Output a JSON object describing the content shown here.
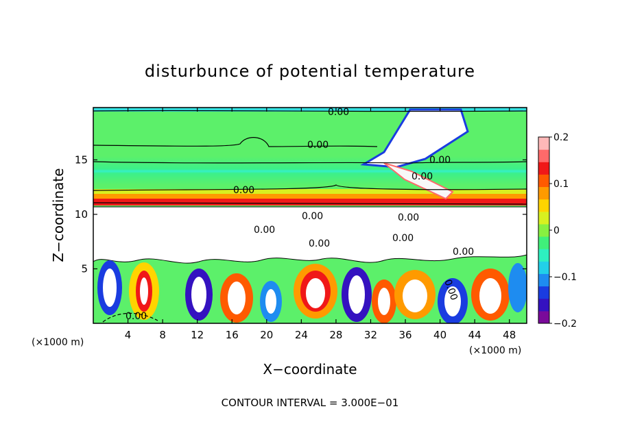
{
  "chart_data": {
    "type": "heatmap",
    "title": "disturbunce of potential temperature",
    "xlabel": "X−coordinate",
    "ylabel": "Z−coordinate",
    "x_unit_left": "(×1000 m)",
    "x_unit_right": "(×1000 m)",
    "x_ticks": [
      "4",
      "8",
      "12",
      "16",
      "20",
      "24",
      "28",
      "32",
      "36",
      "40",
      "44",
      "48"
    ],
    "y_ticks": [
      "5",
      "10",
      "15"
    ],
    "xlim": [
      0,
      50
    ],
    "ylim": [
      0,
      19.8
    ],
    "colorbar": {
      "min": -0.2,
      "max": 0.2,
      "ticks": [
        "0.2",
        "0.1",
        "0",
        "−0.1",
        "−0.2"
      ],
      "colors": [
        "#7a0a9a",
        "#3412c0",
        "#1a3ce0",
        "#1e8cf0",
        "#22d0e8",
        "#2ef0c0",
        "#40f07a",
        "#88f040",
        "#d8f020",
        "#ffd400",
        "#ff9a00",
        "#ff5a00",
        "#f01818",
        "#ff6a6a",
        "#ffb8b8"
      ]
    },
    "contour_labels": [
      "0.00",
      "0.00",
      "0.00",
      "0.00",
      "0.00",
      "0.00",
      "0.00",
      "0.00",
      "0.00",
      "0.00",
      "0.00",
      "0.00",
      "0.00"
    ],
    "footer": "CONTOUR INTERVAL = 3.000E−01"
  }
}
